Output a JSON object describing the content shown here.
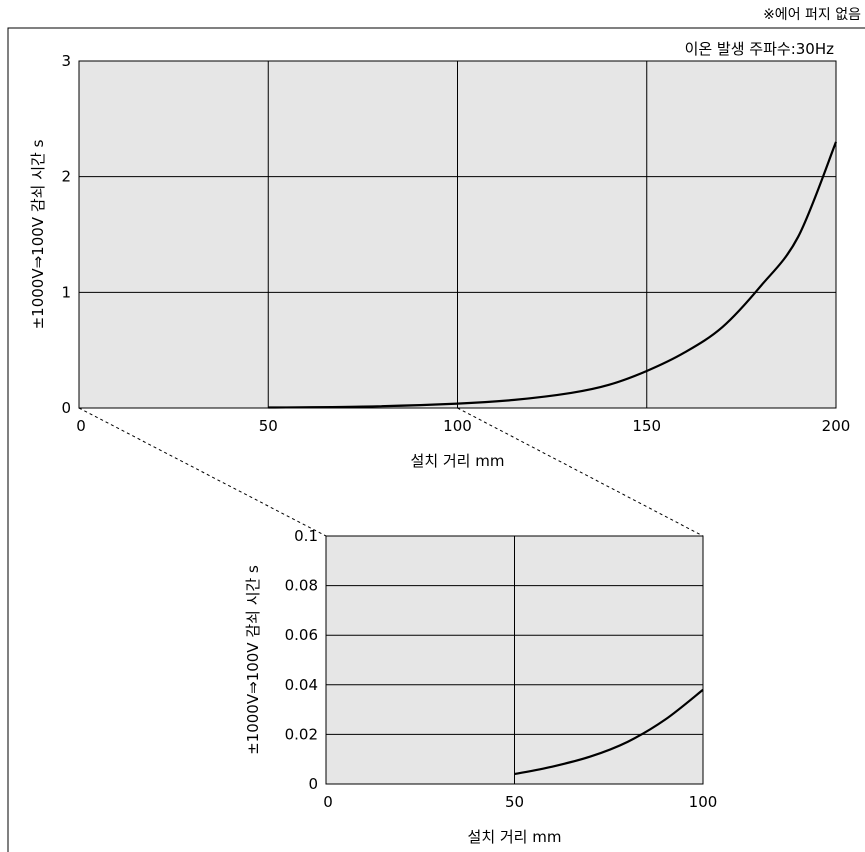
{
  "note": "※에어 퍼지 없음",
  "chart_data": [
    {
      "type": "line",
      "annotation": "이온 발생 주파수:30Hz",
      "xlabel": "설치 거리 mm",
      "ylabel": "±1000V⇒100V 감쇠 시간 s",
      "xlim": [
        0,
        200
      ],
      "ylim": [
        0,
        3
      ],
      "xticks": [
        0,
        50,
        100,
        150,
        200
      ],
      "yticks": [
        0,
        1,
        2,
        3
      ],
      "grid": true,
      "background": "#e6e6e6",
      "series": [
        {
          "x": [
            50,
            75,
            100,
            115,
            130,
            140,
            150,
            160,
            170,
            180,
            190,
            200
          ],
          "y": [
            0.004,
            0.012,
            0.038,
            0.07,
            0.13,
            0.2,
            0.32,
            0.48,
            0.7,
            1.05,
            1.48,
            2.3
          ]
        }
      ]
    },
    {
      "type": "line",
      "xlabel": "설치 거리 mm",
      "ylabel": "±1000V⇒100V 감쇠 시간 s",
      "xlim": [
        0,
        100
      ],
      "ylim": [
        0,
        0.1
      ],
      "xticks": [
        0,
        50,
        100
      ],
      "yticks": [
        0,
        0.02,
        0.04,
        0.06,
        0.08,
        0.1
      ],
      "grid": true,
      "background": "#e6e6e6",
      "series": [
        {
          "x": [
            50,
            60,
            70,
            80,
            90,
            100
          ],
          "y": [
            0.004,
            0.007,
            0.011,
            0.017,
            0.026,
            0.038
          ]
        }
      ]
    }
  ]
}
